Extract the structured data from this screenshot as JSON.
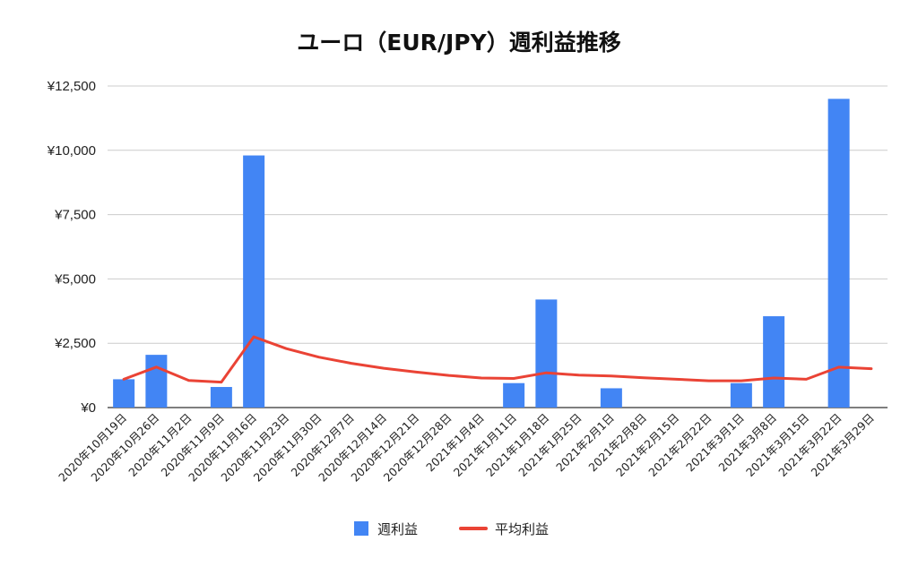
{
  "chart_data": {
    "type": "bar",
    "title": "ユーロ（EUR/JPY）週利益推移",
    "xlabel": "",
    "ylabel": "",
    "ylim": [
      0,
      12500
    ],
    "yticks": [
      "¥0",
      "¥2,500",
      "¥5,000",
      "¥7,500",
      "¥10,000",
      "¥12,500"
    ],
    "grid": true,
    "legend_position": "bottom",
    "categories": [
      "2020年10月19日",
      "2020年10月26日",
      "2020年11月2日",
      "2020年11月9日",
      "2020年11月16日",
      "2020年11月23日",
      "2020年11月30日",
      "2020年12月7日",
      "2020年12月14日",
      "2020年12月21日",
      "2020年12月28日",
      "2021年1月4日",
      "2021年1月11日",
      "2021年1月18日",
      "2021年1月25日",
      "2021年2月1日",
      "2021年2月8日",
      "2021年2月15日",
      "2021年2月22日",
      "2021年3月1日",
      "2021年3月8日",
      "2021年3月15日",
      "2021年3月22日",
      "2021年3月29日"
    ],
    "series": [
      {
        "name": "週利益",
        "kind": "bar",
        "color": "#4285f4",
        "values": [
          1100,
          2050,
          0,
          800,
          9800,
          0,
          0,
          0,
          0,
          0,
          0,
          0,
          950,
          4200,
          0,
          750,
          0,
          0,
          0,
          950,
          3550,
          0,
          12000,
          0
        ]
      },
      {
        "name": "平均利益",
        "kind": "line",
        "color": "#ea4335",
        "values": [
          1100,
          1575,
          1050,
          990,
          2750,
          2290,
          1960,
          1720,
          1530,
          1380,
          1250,
          1150,
          1130,
          1350,
          1260,
          1230,
          1160,
          1100,
          1040,
          1040,
          1150,
          1100,
          1570,
          1510
        ]
      }
    ]
  }
}
